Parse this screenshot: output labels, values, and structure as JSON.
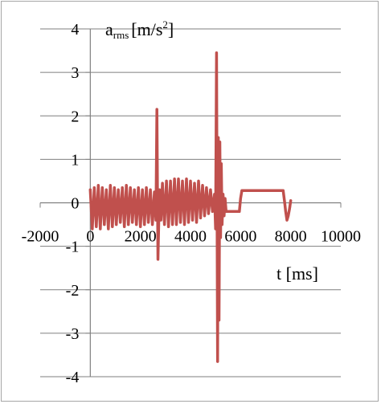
{
  "chart_data": {
    "type": "line",
    "title": "",
    "ylabel": {
      "main": "a",
      "sub": "rms",
      "unit_pre": "[m/s",
      "unit_sup": "2",
      "unit_post": "]"
    },
    "xlabel": "t [ms]",
    "xlim": [
      -2000,
      10000
    ],
    "ylim": [
      -4,
      4
    ],
    "x_ticks": [
      -2000,
      0,
      2000,
      4000,
      6000,
      8000,
      10000
    ],
    "x_tick_labels": [
      "-2000",
      "0",
      "2000",
      "4000",
      "6000",
      "8000",
      "10000"
    ],
    "y_ticks": [
      -4,
      -3,
      -2,
      -1,
      0,
      1,
      2,
      3,
      4
    ],
    "y_tick_labels": [
      "-4",
      "-3",
      "-2",
      "-1",
      "0",
      "1",
      "2",
      "3",
      "4"
    ],
    "grid": true,
    "legend": "none",
    "series": [
      {
        "color": "#c0504d",
        "x": [
          0,
          80,
          160,
          240,
          320,
          400,
          480,
          560,
          640,
          720,
          800,
          880,
          960,
          1040,
          1120,
          1200,
          1280,
          1360,
          1440,
          1520,
          1600,
          1680,
          1760,
          1840,
          1920,
          2000,
          2080,
          2160,
          2240,
          2320,
          2400,
          2480,
          2560,
          2620,
          2660,
          2700,
          2760,
          2820,
          2880,
          2960,
          3040,
          3120,
          3200,
          3280,
          3360,
          3440,
          3520,
          3600,
          3680,
          3760,
          3840,
          3920,
          4000,
          4080,
          4160,
          4240,
          4320,
          4400,
          4480,
          4560,
          4640,
          4720,
          4800,
          4880,
          4960,
          5000,
          5040,
          5080,
          5110,
          5140,
          5170,
          5200,
          5230,
          5260,
          5300,
          5340,
          5380,
          5420,
          5480,
          5560,
          5640,
          5720,
          5800,
          5880,
          5950,
          6000,
          6050,
          6100,
          6300,
          6600,
          6900,
          7200,
          7500,
          7700,
          7760,
          7800,
          7850,
          7900,
          7950,
          8000
        ],
        "y": [
          0.3,
          -0.6,
          0.35,
          -0.55,
          0.4,
          -0.6,
          0.35,
          -0.5,
          0.3,
          -0.6,
          0.4,
          -0.55,
          0.35,
          -0.5,
          0.3,
          -0.45,
          0.35,
          -0.55,
          0.4,
          -0.5,
          0.35,
          -0.45,
          0.3,
          -0.5,
          0.35,
          -0.55,
          0.3,
          -0.5,
          0.35,
          -0.45,
          0.3,
          -0.5,
          0.25,
          -0.4,
          2.15,
          -1.3,
          0.3,
          -0.4,
          0.45,
          -0.5,
          0.5,
          -0.55,
          0.5,
          -0.5,
          0.55,
          -0.5,
          0.55,
          -0.45,
          0.5,
          -0.5,
          0.55,
          -0.45,
          0.5,
          -0.4,
          0.45,
          -0.45,
          0.5,
          -0.35,
          0.4,
          -0.3,
          0.35,
          -0.25,
          0.3,
          -0.2,
          0.2,
          -0.6,
          3.45,
          -3.65,
          1.5,
          -2.7,
          1.4,
          -0.8,
          0.9,
          -0.5,
          0.2,
          -0.3,
          0.1,
          -0.2,
          -0.2,
          -0.2,
          -0.2,
          -0.2,
          -0.2,
          -0.2,
          -0.2,
          0.1,
          0.28,
          0.28,
          0.28,
          0.28,
          0.28,
          0.28,
          0.28,
          0.28,
          0.0,
          -0.2,
          -0.4,
          -0.3,
          -0.15,
          0.05
        ]
      }
    ]
  }
}
